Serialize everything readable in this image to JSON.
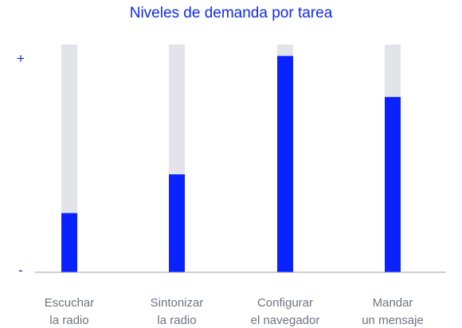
{
  "chart_data": {
    "type": "bar",
    "title": "Niveles de demanda por tarea",
    "xlabel": "",
    "ylabel": "",
    "categories": [
      [
        "Escuchar",
        "la radio"
      ],
      [
        "Sintonizar",
        "la radio"
      ],
      [
        "Configurar",
        "el navegador"
      ],
      [
        "Mandar",
        "un mensaje"
      ]
    ],
    "values": [
      0.26,
      0.43,
      0.95,
      0.77
    ],
    "ylim": [
      0,
      1
    ],
    "y_tick_labels": {
      "max": "+",
      "min": "-"
    },
    "grid": false,
    "legend": "none",
    "colors": {
      "bar": "#0a22ff",
      "track": "#e3e4ea",
      "axis": "#9ea3ad",
      "title": "#1029f0",
      "tick_text": "#6e7480"
    }
  }
}
